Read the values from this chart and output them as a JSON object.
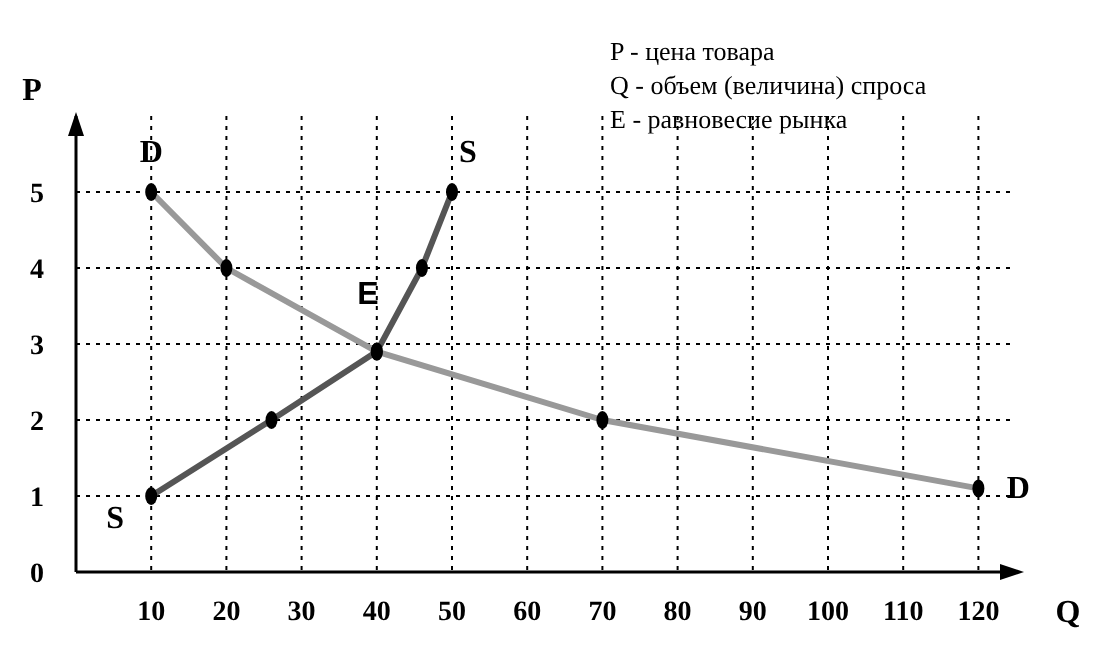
{
  "chart_data": {
    "type": "line",
    "xlabel": "Q",
    "ylabel": "P",
    "xlim": [
      0,
      125
    ],
    "ylim": [
      0,
      6
    ],
    "xticks": [
      10,
      20,
      30,
      40,
      50,
      60,
      70,
      80,
      90,
      100,
      110,
      120
    ],
    "yticks": [
      0,
      1,
      2,
      3,
      4,
      5
    ],
    "grid": true,
    "marker": "circle",
    "line_style": "solid",
    "series": [
      {
        "name": "D",
        "color": "#999999",
        "x": [
          10,
          20,
          40,
          70,
          120
        ],
        "values": [
          5,
          4,
          2.9,
          2,
          1.1
        ]
      },
      {
        "name": "S",
        "color": "#555555",
        "x": [
          10,
          26,
          40,
          46,
          50
        ],
        "values": [
          1,
          2,
          2.9,
          4,
          5
        ]
      }
    ],
    "annotations": [
      "E",
      "P - цена товара",
      "Q - объем (величина) спроса",
      "E - равновесие рынка"
    ]
  }
}
